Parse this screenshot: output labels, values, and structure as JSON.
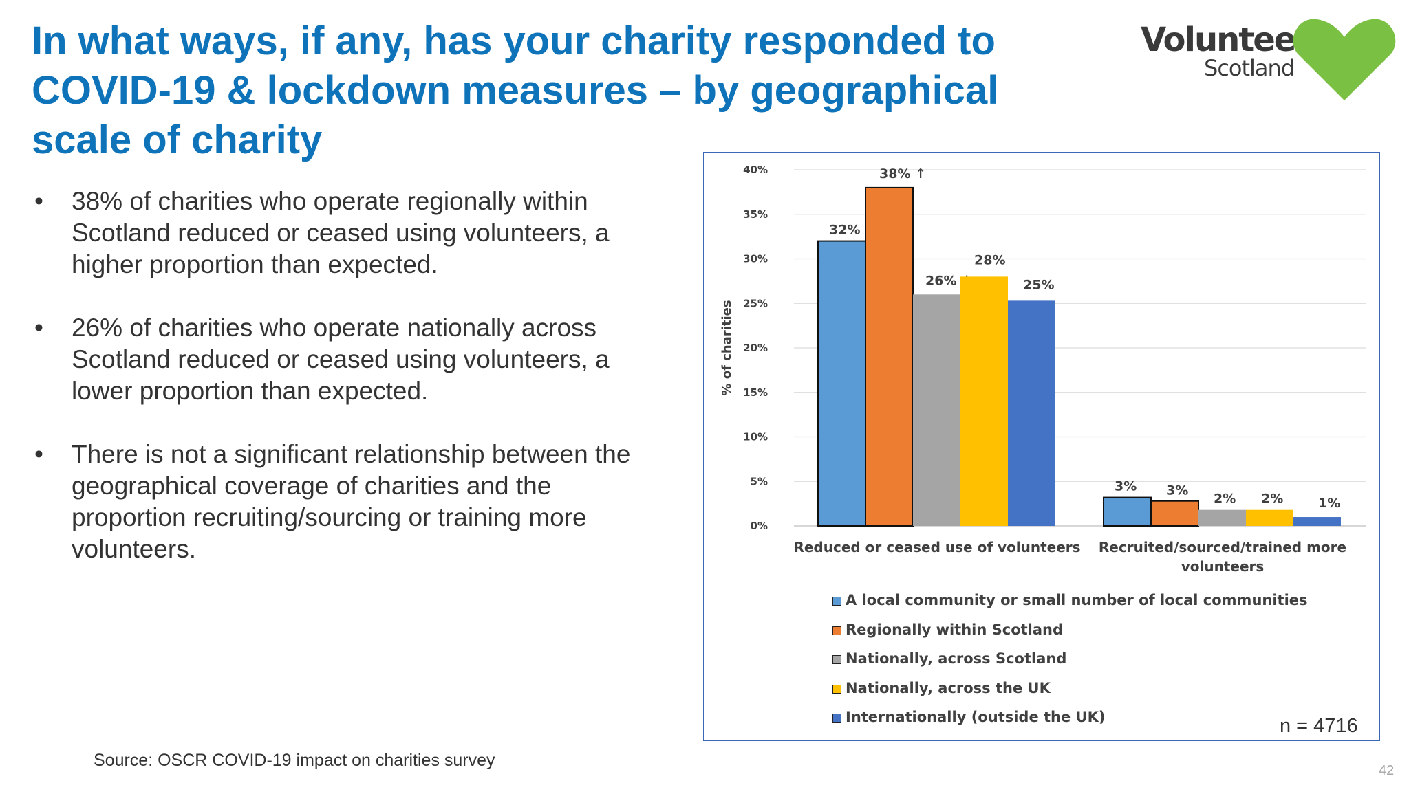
{
  "title": "In what ways, if any, has your charity responded to COVID-19 & lockdown measures – by geographical scale of charity",
  "logo": {
    "word_main": "Volunteer",
    "word_sub": "Scotland",
    "heart_color": "#7ac143"
  },
  "bullet_symbol": "•",
  "bullets": [
    "38% of charities who operate regionally within Scotland reduced or ceased using volunteers, a higher proportion than expected.",
    "26% of charities who operate nationally across Scotland reduced or ceased using volunteers, a lower proportion than expected.",
    "There is not a significant relationship between the geographical  coverage of charities and the proportion recruiting/sourcing or training more volunteers."
  ],
  "source": "Source: OSCR COVID-19 impact on charities survey",
  "page_number": "42",
  "chart_data": {
    "type": "bar",
    "categories": [
      "Reduced or ceased use of volunteers",
      "Recruited/sourced/trained more volunteers"
    ],
    "ylabel": "% of charities",
    "ylim": [
      0,
      40
    ],
    "yticks": [
      "0%",
      "5%",
      "10%",
      "15%",
      "20%",
      "25%",
      "30%",
      "35%",
      "40%"
    ],
    "grid": true,
    "legend_position": "bottom",
    "series": [
      {
        "name": "A local community or small number of local communities",
        "color": "#5b9bd5",
        "values": [
          32,
          3.2
        ],
        "labels": [
          "32%",
          "3%"
        ]
      },
      {
        "name": "Regionally within Scotland",
        "color": "#ed7d31",
        "values": [
          38,
          2.8
        ],
        "labels": [
          "38% ↑",
          "3%"
        ]
      },
      {
        "name": "Nationally, across Scotland",
        "color": "#a5a5a5",
        "values": [
          26,
          1.8
        ],
        "labels": [
          "26% ↓",
          "2%"
        ]
      },
      {
        "name": "Nationally, across the UK",
        "color": "#ffc000",
        "values": [
          28,
          1.8
        ],
        "labels": [
          "28%",
          "2%"
        ]
      },
      {
        "name": "Internationally (outside the UK)",
        "color": "#4472c4",
        "values": [
          25.3,
          1.0
        ],
        "labels": [
          "25%",
          "1%"
        ]
      }
    ],
    "sample_size": "n = 4716"
  }
}
